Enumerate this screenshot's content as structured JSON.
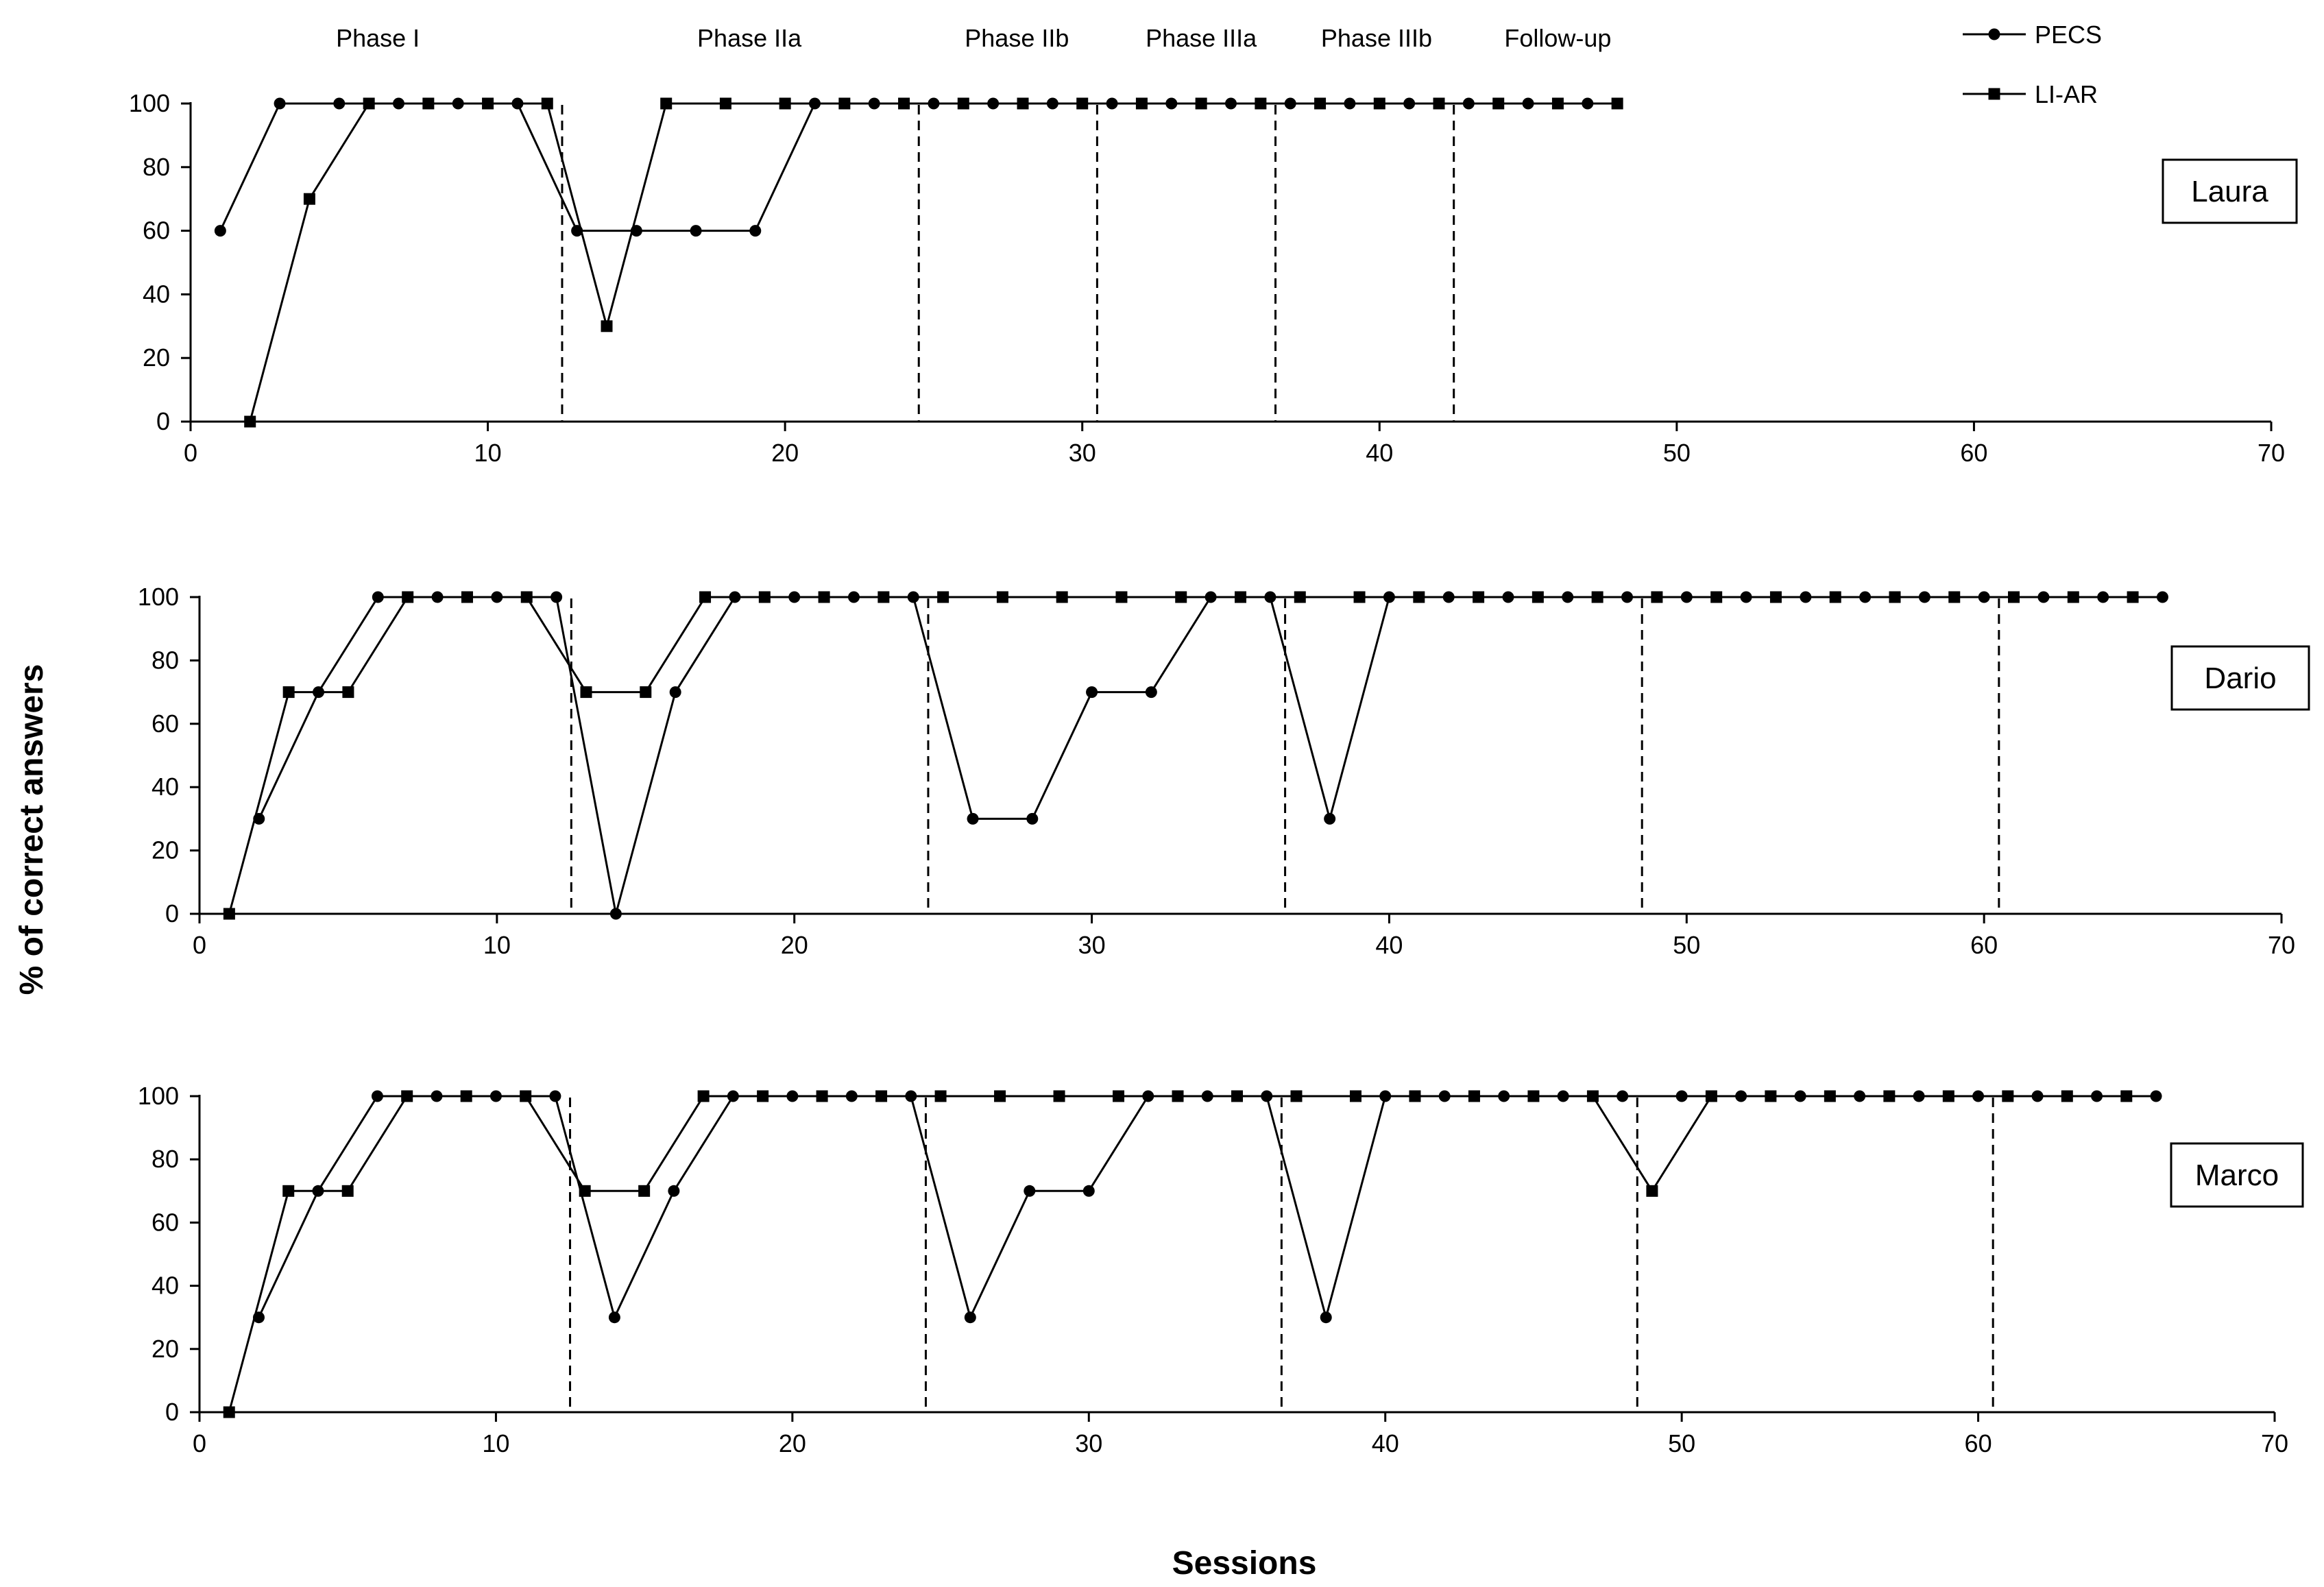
{
  "chart_data": {
    "type": "line",
    "x_label": "Sessions",
    "y_label": "% of correct answers",
    "legend": {
      "placement": "top-right",
      "entries": [
        {
          "name": "PECS",
          "marker": "circle"
        },
        {
          "name": "LI-AR",
          "marker": "square"
        }
      ]
    },
    "phase_labels": [
      {
        "label": "Phase I",
        "x": 6.3
      },
      {
        "label": "Phase IIa",
        "x": 18.8
      },
      {
        "label": "Phase IIb",
        "x": 27.8
      },
      {
        "label": "Phase IIIa",
        "x": 34.0
      },
      {
        "label": "Phase IIIb",
        "x": 39.9
      },
      {
        "label": "Follow-up",
        "x": 46.0
      }
    ],
    "panels": [
      {
        "participant": "Laura",
        "xlim": [
          0,
          70
        ],
        "ylim": [
          0,
          100
        ],
        "x_ticks": [
          "0",
          "10",
          "20",
          "30",
          "40",
          "50",
          "60",
          "70"
        ],
        "y_ticks": [
          "0",
          "20",
          "40",
          "60",
          "80",
          "100"
        ],
        "phase_lines": [
          12.5,
          24.5,
          30.5,
          36.5,
          42.5
        ],
        "series": [
          {
            "name": "PECS",
            "marker": "circle",
            "points": [
              [
                1,
                60
              ],
              [
                3,
                100
              ],
              [
                5,
                100
              ],
              [
                7,
                100
              ],
              [
                9,
                100
              ],
              [
                11,
                100
              ],
              [
                13,
                60
              ],
              [
                15,
                60
              ],
              [
                17,
                60
              ],
              [
                19,
                60
              ],
              [
                21,
                100
              ],
              [
                23,
                100
              ],
              [
                25,
                100
              ],
              [
                27,
                100
              ],
              [
                29,
                100
              ],
              [
                31,
                100
              ],
              [
                33,
                100
              ],
              [
                35,
                100
              ],
              [
                37,
                100
              ],
              [
                39,
                100
              ],
              [
                41,
                100
              ],
              [
                43,
                100
              ],
              [
                45,
                100
              ],
              [
                47,
                100
              ]
            ]
          },
          {
            "name": "LI-AR",
            "marker": "square",
            "points": [
              [
                2,
                0
              ],
              [
                4,
                70
              ],
              [
                6,
                100
              ],
              [
                8,
                100
              ],
              [
                10,
                100
              ],
              [
                12,
                100
              ],
              [
                14,
                30
              ],
              [
                16,
                100
              ],
              [
                18,
                100
              ],
              [
                20,
                100
              ],
              [
                22,
                100
              ],
              [
                24,
                100
              ],
              [
                26,
                100
              ],
              [
                28,
                100
              ],
              [
                30,
                100
              ],
              [
                32,
                100
              ],
              [
                34,
                100
              ],
              [
                36,
                100
              ],
              [
                38,
                100
              ],
              [
                40,
                100
              ],
              [
                42,
                100
              ],
              [
                44,
                100
              ],
              [
                46,
                100
              ],
              [
                48,
                100
              ]
            ]
          }
        ]
      },
      {
        "participant": "Dario",
        "xlim": [
          0,
          70
        ],
        "ylim": [
          0,
          100
        ],
        "x_ticks": [
          "0",
          "10",
          "20",
          "30",
          "40",
          "50",
          "60",
          "70"
        ],
        "y_ticks": [
          "0",
          "20",
          "40",
          "60",
          "80",
          "100"
        ],
        "phase_lines": [
          12.5,
          24.5,
          36.5,
          48.5,
          60.5
        ],
        "series": [
          {
            "name": "PECS",
            "marker": "circle",
            "points": [
              [
                2,
                30
              ],
              [
                4,
                70
              ],
              [
                6,
                100
              ],
              [
                8,
                100
              ],
              [
                10,
                100
              ],
              [
                12,
                100
              ],
              [
                14,
                0
              ],
              [
                16,
                70
              ],
              [
                18,
                100
              ],
              [
                20,
                100
              ],
              [
                22,
                100
              ],
              [
                24,
                100
              ],
              [
                26,
                30
              ],
              [
                28,
                30
              ],
              [
                30,
                70
              ],
              [
                32,
                70
              ],
              [
                34,
                100
              ],
              [
                36,
                100
              ],
              [
                38,
                30
              ],
              [
                40,
                100
              ],
              [
                42,
                100
              ],
              [
                44,
                100
              ],
              [
                46,
                100
              ],
              [
                48,
                100
              ],
              [
                50,
                100
              ],
              [
                52,
                100
              ],
              [
                54,
                100
              ],
              [
                56,
                100
              ],
              [
                58,
                100
              ],
              [
                60,
                100
              ],
              [
                62,
                100
              ],
              [
                64,
                100
              ],
              [
                66,
                100
              ]
            ]
          },
          {
            "name": "LI-AR",
            "marker": "square",
            "points": [
              [
                1,
                0
              ],
              [
                3,
                70
              ],
              [
                5,
                70
              ],
              [
                7,
                100
              ],
              [
                9,
                100
              ],
              [
                11,
                100
              ],
              [
                13,
                70
              ],
              [
                15,
                70
              ],
              [
                17,
                100
              ],
              [
                19,
                100
              ],
              [
                21,
                100
              ],
              [
                23,
                100
              ],
              [
                25,
                100
              ],
              [
                27,
                100
              ],
              [
                29,
                100
              ],
              [
                31,
                100
              ],
              [
                33,
                100
              ],
              [
                35,
                100
              ],
              [
                37,
                100
              ],
              [
                39,
                100
              ],
              [
                41,
                100
              ],
              [
                43,
                100
              ],
              [
                45,
                100
              ],
              [
                47,
                100
              ],
              [
                49,
                100
              ],
              [
                51,
                100
              ],
              [
                53,
                100
              ],
              [
                55,
                100
              ],
              [
                57,
                100
              ],
              [
                59,
                100
              ],
              [
                61,
                100
              ],
              [
                63,
                100
              ],
              [
                65,
                100
              ]
            ]
          }
        ]
      },
      {
        "participant": "Marco",
        "xlim": [
          0,
          70
        ],
        "ylim": [
          0,
          100
        ],
        "x_ticks": [
          "0",
          "10",
          "20",
          "30",
          "40",
          "50",
          "60",
          "70"
        ],
        "y_ticks": [
          "0",
          "20",
          "40",
          "60",
          "80",
          "100"
        ],
        "phase_lines": [
          12.5,
          24.5,
          36.5,
          48.5,
          60.5
        ],
        "series": [
          {
            "name": "PECS",
            "marker": "circle",
            "points": [
              [
                2,
                30
              ],
              [
                4,
                70
              ],
              [
                6,
                100
              ],
              [
                8,
                100
              ],
              [
                10,
                100
              ],
              [
                12,
                100
              ],
              [
                14,
                30
              ],
              [
                16,
                70
              ],
              [
                18,
                100
              ],
              [
                20,
                100
              ],
              [
                22,
                100
              ],
              [
                24,
                100
              ],
              [
                26,
                30
              ],
              [
                28,
                70
              ],
              [
                30,
                70
              ],
              [
                32,
                100
              ],
              [
                34,
                100
              ],
              [
                36,
                100
              ],
              [
                38,
                30
              ],
              [
                40,
                100
              ],
              [
                42,
                100
              ],
              [
                44,
                100
              ],
              [
                46,
                100
              ],
              [
                48,
                100
              ],
              [
                50,
                100
              ],
              [
                52,
                100
              ],
              [
                54,
                100
              ],
              [
                56,
                100
              ],
              [
                58,
                100
              ],
              [
                60,
                100
              ],
              [
                62,
                100
              ],
              [
                64,
                100
              ],
              [
                66,
                100
              ]
            ]
          },
          {
            "name": "LI-AR",
            "marker": "square",
            "points": [
              [
                1,
                0
              ],
              [
                3,
                70
              ],
              [
                5,
                70
              ],
              [
                7,
                100
              ],
              [
                9,
                100
              ],
              [
                11,
                100
              ],
              [
                13,
                70
              ],
              [
                15,
                70
              ],
              [
                17,
                100
              ],
              [
                19,
                100
              ],
              [
                21,
                100
              ],
              [
                23,
                100
              ],
              [
                25,
                100
              ],
              [
                27,
                100
              ],
              [
                29,
                100
              ],
              [
                31,
                100
              ],
              [
                33,
                100
              ],
              [
                35,
                100
              ],
              [
                37,
                100
              ],
              [
                39,
                100
              ],
              [
                41,
                100
              ],
              [
                43,
                100
              ],
              [
                45,
                100
              ],
              [
                47,
                100
              ],
              [
                49,
                70
              ],
              [
                51,
                100
              ],
              [
                53,
                100
              ],
              [
                55,
                100
              ],
              [
                57,
                100
              ],
              [
                59,
                100
              ],
              [
                61,
                100
              ],
              [
                63,
                100
              ],
              [
                65,
                100
              ]
            ]
          }
        ]
      }
    ]
  }
}
